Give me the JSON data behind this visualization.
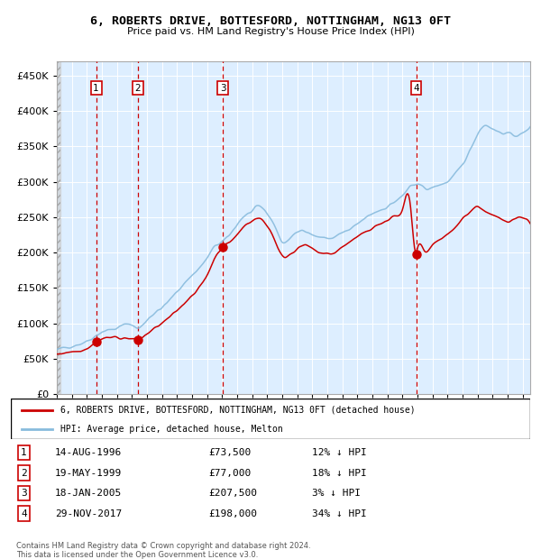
{
  "title": "6, ROBERTS DRIVE, BOTTESFORD, NOTTINGHAM, NG13 0FT",
  "subtitle": "Price paid vs. HM Land Registry's House Price Index (HPI)",
  "legend_line1": "6, ROBERTS DRIVE, BOTTESFORD, NOTTINGHAM, NG13 0FT (detached house)",
  "legend_line2": "HPI: Average price, detached house, Melton",
  "footer1": "Contains HM Land Registry data © Crown copyright and database right 2024.",
  "footer2": "This data is licensed under the Open Government Licence v3.0.",
  "transactions": [
    {
      "num": 1,
      "date": "14-AUG-1996",
      "price": 73500,
      "pct": "12%",
      "dir": "↓"
    },
    {
      "num": 2,
      "date": "19-MAY-1999",
      "price": 77000,
      "pct": "18%",
      "dir": "↓"
    },
    {
      "num": 3,
      "date": "18-JAN-2005",
      "price": 207500,
      "pct": "3%",
      "dir": "↓"
    },
    {
      "num": 4,
      "date": "29-NOV-2017",
      "price": 198000,
      "pct": "34%",
      "dir": "↓"
    }
  ],
  "transaction_dates_decimal": [
    1996.617,
    1999.38,
    2005.047,
    2017.91
  ],
  "transaction_prices": [
    73500,
    77000,
    207500,
    198000
  ],
  "hpi_color": "#88bbdd",
  "price_color": "#cc0000",
  "dot_color": "#cc0000",
  "vline_color": "#cc0000",
  "box_color": "#cc0000",
  "background_plot": "#ddeeff",
  "grid_color": "#ffffff",
  "ylim": [
    0,
    470000
  ],
  "yticks": [
    0,
    50000,
    100000,
    150000,
    200000,
    250000,
    300000,
    350000,
    400000,
    450000
  ],
  "xstart": 1994.0,
  "xend": 2025.5,
  "hpi_anchors_x": [
    1994.0,
    1995.0,
    1996.0,
    1996.617,
    1997.0,
    1998.0,
    1999.0,
    1999.38,
    2000.0,
    2001.0,
    2002.0,
    2003.0,
    2004.0,
    2004.5,
    2005.0,
    2005.5,
    2006.0,
    2006.5,
    2007.0,
    2007.5,
    2008.0,
    2008.5,
    2009.0,
    2009.5,
    2010.0,
    2010.5,
    2011.0,
    2011.5,
    2012.0,
    2012.5,
    2013.0,
    2013.5,
    2014.0,
    2014.5,
    2015.0,
    2015.5,
    2016.0,
    2016.5,
    2017.0,
    2017.5,
    2017.91,
    2018.0,
    2018.5,
    2019.0,
    2019.5,
    2020.0,
    2020.5,
    2021.0,
    2021.5,
    2022.0,
    2022.5,
    2023.0,
    2023.5,
    2024.0,
    2024.5,
    2025.0
  ],
  "hpi_anchors_y": [
    62000,
    68000,
    75000,
    83000,
    88000,
    93000,
    98000,
    93000,
    105000,
    122000,
    145000,
    168000,
    192000,
    208000,
    215000,
    225000,
    240000,
    252000,
    258000,
    265000,
    255000,
    238000,
    215000,
    220000,
    228000,
    232000,
    225000,
    222000,
    220000,
    222000,
    228000,
    232000,
    240000,
    248000,
    255000,
    260000,
    265000,
    272000,
    280000,
    292000,
    296000,
    298000,
    290000,
    292000,
    296000,
    300000,
    310000,
    325000,
    345000,
    368000,
    380000,
    375000,
    370000,
    368000,
    366000,
    368000
  ],
  "price_anchors_x": [
    1994.0,
    1995.0,
    1996.0,
    1996.617,
    1997.0,
    1997.5,
    1998.0,
    1998.5,
    1999.0,
    1999.38,
    2000.0,
    2001.0,
    2002.0,
    2003.0,
    2004.0,
    2004.5,
    2005.047,
    2005.5,
    2006.0,
    2006.5,
    2007.0,
    2007.5,
    2008.0,
    2008.5,
    2009.0,
    2009.5,
    2010.0,
    2010.5,
    2011.0,
    2011.5,
    2012.0,
    2012.5,
    2013.0,
    2013.5,
    2014.0,
    2014.5,
    2015.0,
    2015.5,
    2016.0,
    2016.5,
    2017.0,
    2017.5,
    2017.91,
    2018.0,
    2018.5,
    2019.0,
    2019.5,
    2020.0,
    2020.5,
    2021.0,
    2021.5,
    2022.0,
    2022.5,
    2023.0,
    2023.5,
    2024.0,
    2024.5,
    2025.0
  ],
  "price_anchors_y": [
    55000,
    60000,
    65000,
    73500,
    78000,
    80000,
    80000,
    79000,
    78000,
    77000,
    85000,
    100000,
    118000,
    140000,
    168000,
    192000,
    207500,
    215000,
    225000,
    238000,
    245000,
    248000,
    238000,
    218000,
    195000,
    198000,
    205000,
    210000,
    205000,
    200000,
    198000,
    200000,
    208000,
    215000,
    222000,
    228000,
    235000,
    240000,
    245000,
    252000,
    260000,
    272000,
    198000,
    205000,
    200000,
    210000,
    218000,
    225000,
    235000,
    248000,
    258000,
    265000,
    258000,
    252000,
    248000,
    245000,
    248000,
    250000
  ]
}
